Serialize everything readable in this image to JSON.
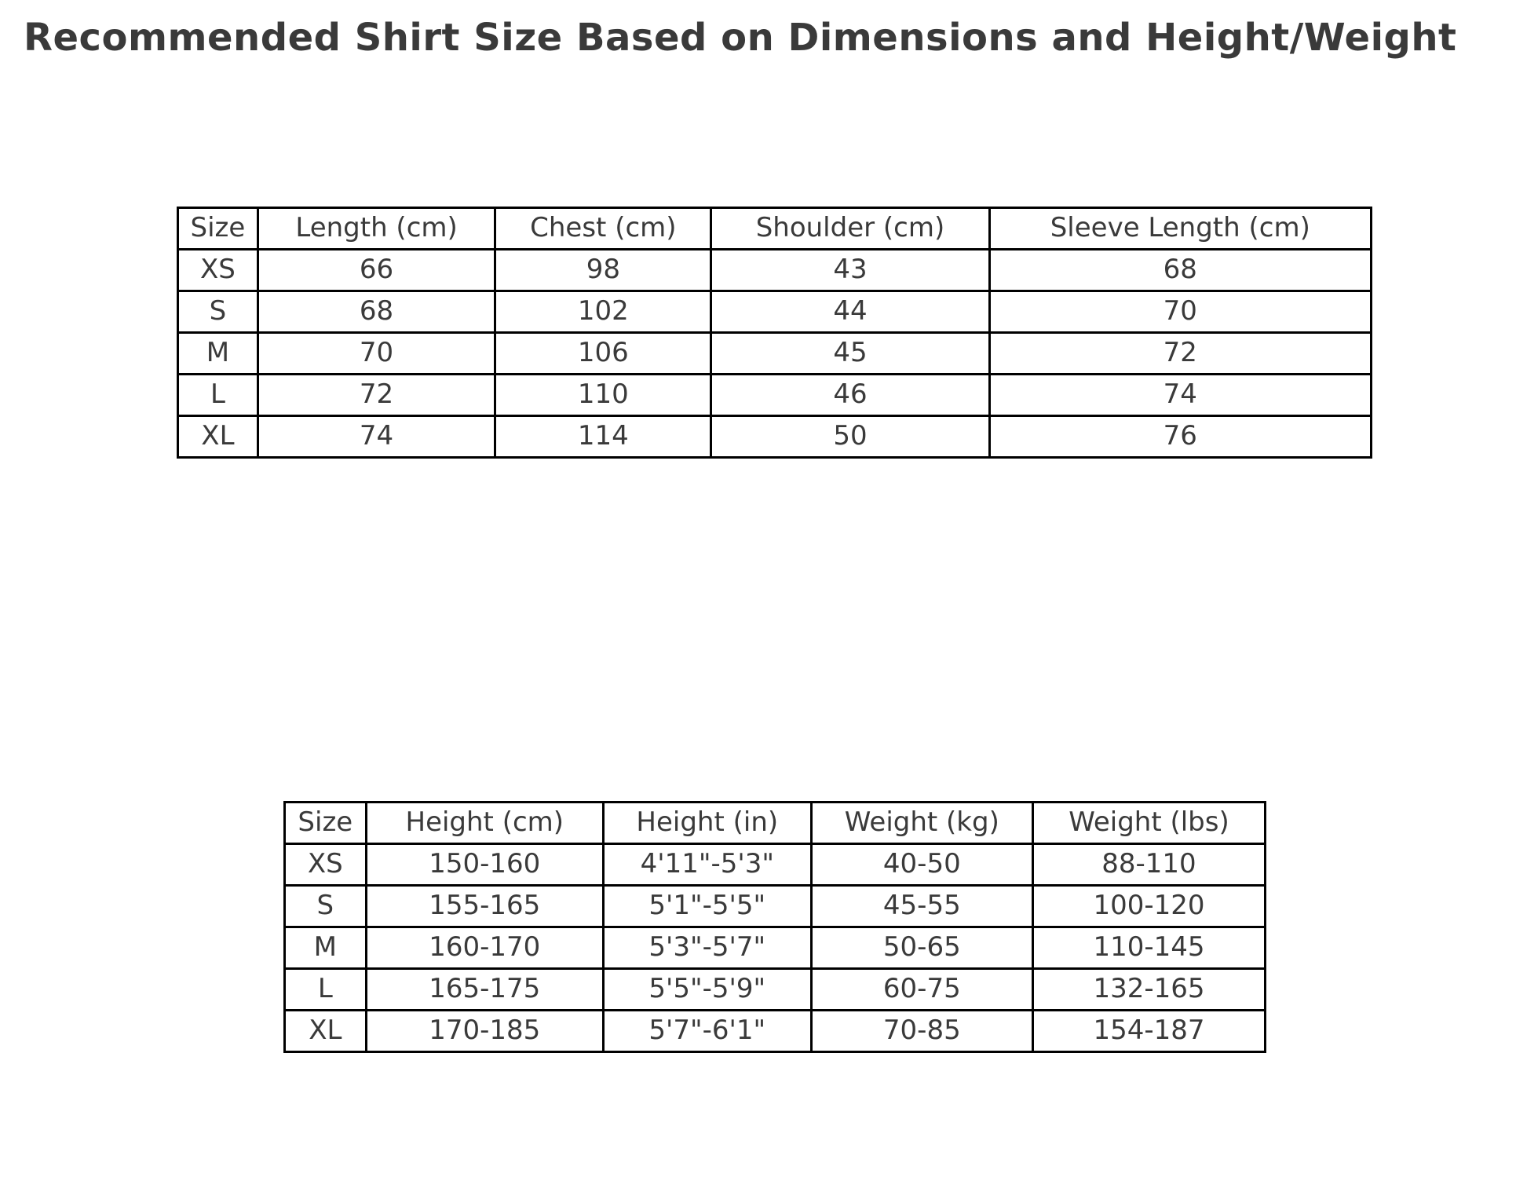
{
  "page": {
    "title": "Recommended Shirt Size Based on Dimensions and Height/Weight",
    "background_color": "#ffffff",
    "text_color": "#3a3a3a",
    "border_color": "#000000"
  },
  "chart_data": [
    {
      "type": "table",
      "name": "shirt-dimensions-table",
      "columns": [
        "Size",
        "Length (cm)",
        "Chest (cm)",
        "Shoulder (cm)",
        "Sleeve Length (cm)"
      ],
      "rows": [
        [
          "XS",
          "66",
          "98",
          "43",
          "68"
        ],
        [
          "S",
          "68",
          "102",
          "44",
          "70"
        ],
        [
          "M",
          "70",
          "106",
          "45",
          "72"
        ],
        [
          "L",
          "72",
          "110",
          "46",
          "74"
        ],
        [
          "XL",
          "74",
          "114",
          "50",
          "76"
        ]
      ],
      "col_widths_pct": [
        6.7,
        19.9,
        18.1,
        23.3,
        32.0
      ],
      "grid": true,
      "legend": false
    },
    {
      "type": "table",
      "name": "height-weight-table",
      "columns": [
        "Size",
        "Height (cm)",
        "Height (in)",
        "Weight (kg)",
        "Weight (lbs)"
      ],
      "rows": [
        [
          "XS",
          "150-160",
          "4'11\"-5'3\"",
          "40-50",
          "88-110"
        ],
        [
          "S",
          "155-165",
          "5'1\"-5'5\"",
          "45-55",
          "100-120"
        ],
        [
          "M",
          "160-170",
          "5'3\"-5'7\"",
          "50-65",
          "110-145"
        ],
        [
          "L",
          "165-175",
          "5'5\"-5'9\"",
          "60-75",
          "132-165"
        ],
        [
          "XL",
          "170-185",
          "5'7\"-6'1\"",
          "70-85",
          "154-187"
        ]
      ],
      "col_widths_pct": [
        8.3,
        24.2,
        21.2,
        22.6,
        23.7
      ],
      "grid": true,
      "legend": false
    }
  ]
}
